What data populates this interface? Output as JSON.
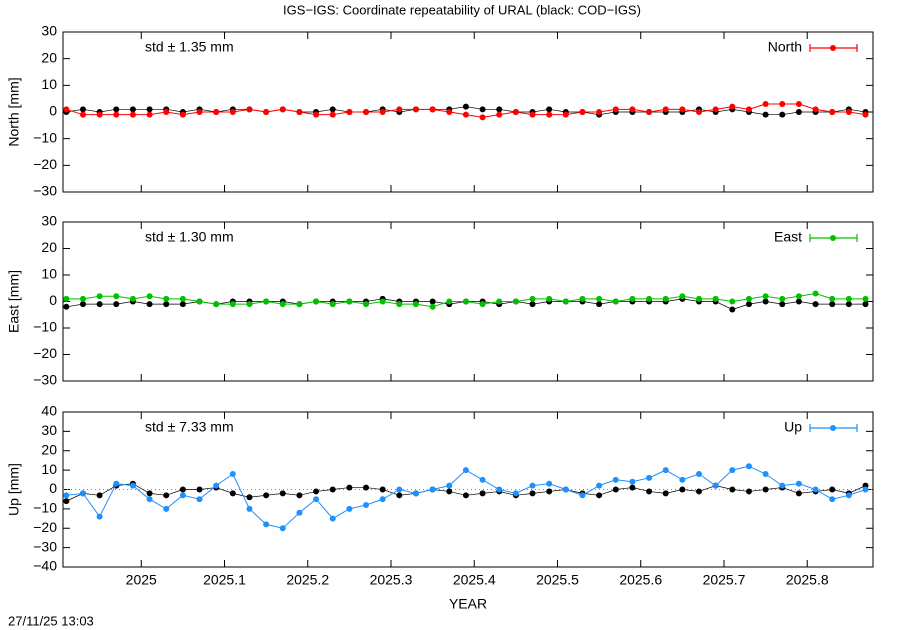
{
  "title": "IGS−IGS: Coordinate repeatability of URAL (black: COD−IGS)",
  "timestamp": "27/11/25 13:03",
  "chart_data": [
    {
      "type": "line",
      "ylabel": "North [mm]",
      "annotation": "std ± 1.35 mm",
      "annotation_color": "#ff0000",
      "legend": "top-right",
      "xtick_labels": false,
      "zero_line": false,
      "xlim": [
        2024.906,
        2025.879
      ],
      "xticks": [
        2025,
        2025.1,
        2025.2,
        2025.3,
        2025.4,
        2025.5,
        2025.6,
        2025.7,
        2025.8
      ],
      "ylim": [
        -30,
        30
      ],
      "yticks": [
        {
          "value": -30,
          "label": "−30"
        },
        {
          "value": -20,
          "label": "−20"
        },
        {
          "value": -10,
          "label": "−10"
        },
        0,
        10,
        20,
        30
      ],
      "x": [
        2024.91,
        2024.93,
        2024.95,
        2024.97,
        2024.99,
        2025.01,
        2025.03,
        2025.05,
        2025.07,
        2025.09,
        2025.11,
        2025.13,
        2025.15,
        2025.17,
        2025.19,
        2025.21,
        2025.23,
        2025.25,
        2025.27,
        2025.29,
        2025.31,
        2025.33,
        2025.35,
        2025.37,
        2025.39,
        2025.41,
        2025.43,
        2025.45,
        2025.47,
        2025.49,
        2025.51,
        2025.53,
        2025.55,
        2025.57,
        2025.59,
        2025.61,
        2025.63,
        2025.65,
        2025.67,
        2025.69,
        2025.71,
        2025.73,
        2025.75,
        2025.77,
        2025.79,
        2025.81,
        2025.83,
        2025.85,
        2025.87
      ],
      "series": [
        {
          "color": "#000000",
          "values": [
            0,
            1,
            0,
            1,
            1,
            1,
            1,
            0,
            1,
            0,
            1,
            1,
            0,
            1,
            0,
            0,
            1,
            0,
            0,
            1,
            0,
            1,
            1,
            1,
            2,
            1,
            1,
            0,
            0,
            1,
            0,
            0,
            -1,
            0,
            0,
            0,
            0,
            0,
            1,
            0,
            1,
            0,
            -1,
            -1,
            0,
            0,
            0,
            1,
            0
          ]
        },
        {
          "name": "North",
          "color": "#ff0000",
          "values": [
            1,
            -1,
            -1,
            -1,
            -1,
            -1,
            0,
            -1,
            0,
            0,
            0,
            1,
            0,
            1,
            0,
            -1,
            -1,
            0,
            0,
            0,
            1,
            1,
            1,
            0,
            -1,
            -2,
            -1,
            0,
            -1,
            -1,
            -1,
            0,
            0,
            1,
            1,
            0,
            1,
            1,
            0,
            1,
            2,
            1,
            3,
            3,
            3,
            1,
            0,
            0,
            -1
          ]
        }
      ]
    },
    {
      "type": "line",
      "ylabel": "East [mm]",
      "annotation": "std ± 1.30 mm",
      "annotation_color": "#00c000",
      "legend": "top-right",
      "xtick_labels": false,
      "zero_line": false,
      "xlim": [
        2024.906,
        2025.879
      ],
      "xticks": [
        2025,
        2025.1,
        2025.2,
        2025.3,
        2025.4,
        2025.5,
        2025.6,
        2025.7,
        2025.8
      ],
      "ylim": [
        -30,
        30
      ],
      "yticks": [
        {
          "value": -30,
          "label": "−30"
        },
        {
          "value": -20,
          "label": "−20"
        },
        {
          "value": -10,
          "label": "−10"
        },
        0,
        10,
        20,
        30
      ],
      "x": [
        2024.91,
        2024.93,
        2024.95,
        2024.97,
        2024.99,
        2025.01,
        2025.03,
        2025.05,
        2025.07,
        2025.09,
        2025.11,
        2025.13,
        2025.15,
        2025.17,
        2025.19,
        2025.21,
        2025.23,
        2025.25,
        2025.27,
        2025.29,
        2025.31,
        2025.33,
        2025.35,
        2025.37,
        2025.39,
        2025.41,
        2025.43,
        2025.45,
        2025.47,
        2025.49,
        2025.51,
        2025.53,
        2025.55,
        2025.57,
        2025.59,
        2025.61,
        2025.63,
        2025.65,
        2025.67,
        2025.69,
        2025.71,
        2025.73,
        2025.75,
        2025.77,
        2025.79,
        2025.81,
        2025.83,
        2025.85,
        2025.87
      ],
      "series": [
        {
          "color": "#000000",
          "values": [
            -2,
            -1,
            -1,
            -1,
            0,
            -1,
            -1,
            -1,
            0,
            -1,
            0,
            0,
            0,
            0,
            -1,
            0,
            0,
            0,
            0,
            1,
            0,
            0,
            0,
            -1,
            0,
            0,
            -1,
            0,
            -1,
            0,
            0,
            0,
            -1,
            0,
            0,
            0,
            0,
            1,
            0,
            0,
            -3,
            -1,
            0,
            -1,
            0,
            -1,
            -1,
            -1,
            -1
          ]
        },
        {
          "name": "East",
          "color": "#00c000",
          "values": [
            1,
            1,
            2,
            2,
            1,
            2,
            1,
            1,
            0,
            -1,
            -1,
            -1,
            0,
            -1,
            -1,
            0,
            -1,
            0,
            -1,
            0,
            -1,
            -1,
            -2,
            0,
            0,
            -1,
            0,
            0,
            1,
            1,
            0,
            1,
            1,
            0,
            1,
            1,
            1,
            2,
            1,
            1,
            0,
            1,
            2,
            1,
            2,
            3,
            1,
            1,
            1
          ]
        }
      ]
    },
    {
      "type": "line",
      "ylabel": "Up [mm]",
      "xlabel": "YEAR",
      "annotation": "std ± 7.33 mm",
      "annotation_color": "#1e90ff",
      "legend": "top-right",
      "xtick_labels": true,
      "zero_line": true,
      "xlim": [
        2024.906,
        2025.879
      ],
      "xticks": [
        2025,
        2025.1,
        2025.2,
        2025.3,
        2025.4,
        2025.5,
        2025.6,
        2025.7,
        2025.8
      ],
      "ylim": [
        -40,
        40
      ],
      "yticks": [
        {
          "value": -40,
          "label": "−40"
        },
        {
          "value": -30,
          "label": "−30"
        },
        {
          "value": -20,
          "label": "−20"
        },
        {
          "value": -10,
          "label": "−10"
        },
        0,
        10,
        20,
        30,
        40
      ],
      "x": [
        2024.91,
        2024.93,
        2024.95,
        2024.97,
        2024.99,
        2025.01,
        2025.03,
        2025.05,
        2025.07,
        2025.09,
        2025.11,
        2025.13,
        2025.15,
        2025.17,
        2025.19,
        2025.21,
        2025.23,
        2025.25,
        2025.27,
        2025.29,
        2025.31,
        2025.33,
        2025.35,
        2025.37,
        2025.39,
        2025.41,
        2025.43,
        2025.45,
        2025.47,
        2025.49,
        2025.51,
        2025.53,
        2025.55,
        2025.57,
        2025.59,
        2025.61,
        2025.63,
        2025.65,
        2025.67,
        2025.69,
        2025.71,
        2025.73,
        2025.75,
        2025.77,
        2025.79,
        2025.81,
        2025.83,
        2025.85,
        2025.87
      ],
      "series": [
        {
          "color": "#000000",
          "values": [
            -6,
            -2,
            -3,
            2,
            3,
            -2,
            -3,
            0,
            0,
            1,
            -2,
            -4,
            -3,
            -2,
            -3,
            -1,
            0,
            1,
            1,
            0,
            -3,
            -2,
            0,
            -1,
            -3,
            -2,
            -1,
            -3,
            -2,
            -1,
            0,
            -2,
            -3,
            0,
            1,
            -1,
            -2,
            0,
            -1,
            2,
            0,
            -1,
            0,
            1,
            -2,
            -1,
            0,
            -2,
            2
          ]
        },
        {
          "name": "Up",
          "color": "#1e90ff",
          "values": [
            -3,
            -2,
            -14,
            3,
            2,
            -5,
            -10,
            -3,
            -5,
            2,
            8,
            -10,
            -18,
            -20,
            -12,
            -5,
            -15,
            -10,
            -8,
            -5,
            0,
            -2,
            0,
            2,
            10,
            5,
            0,
            -2,
            2,
            3,
            0,
            -3,
            2,
            5,
            4,
            6,
            10,
            5,
            8,
            2,
            10,
            12,
            8,
            2,
            3,
            0,
            -5,
            -3,
            0
          ]
        }
      ]
    }
  ]
}
